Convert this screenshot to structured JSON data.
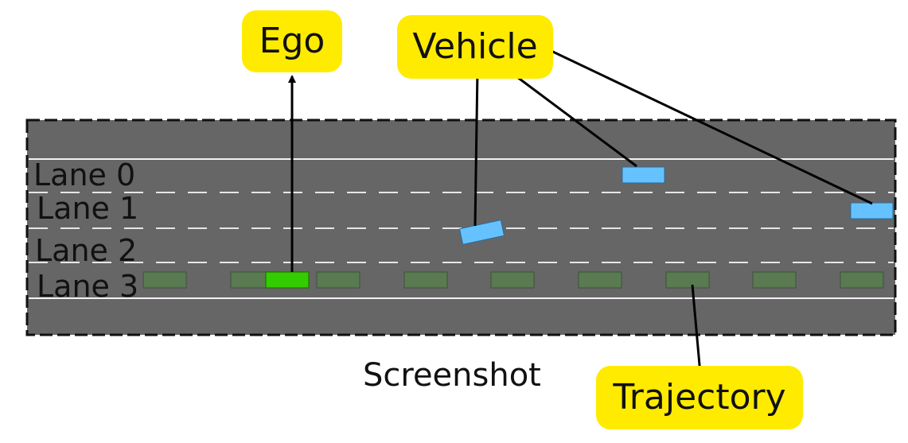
{
  "lane_labels": [
    "Lane 0",
    "Lane 1",
    "Lane 2",
    "Lane 3"
  ],
  "callouts": {
    "ego": "Ego",
    "vehicle": "Vehicle",
    "trajectory": "Trajectory"
  },
  "caption": "Screenshot",
  "colors": {
    "road": "#666666",
    "lane_solid": "#f2f2f2",
    "lane_dashed": "#e6e6e6",
    "ego": "#33cc00",
    "trajectory": "#5a7a52",
    "vehicle": "#66c2ff",
    "callout_bg": "#ffeb00",
    "arrow": "#000000"
  },
  "icons": {
    "vehicle": "vehicle-rectangle-icon",
    "ego": "ego-rectangle-icon",
    "trajectory_waypoint": "trajectory-waypoint-icon"
  }
}
